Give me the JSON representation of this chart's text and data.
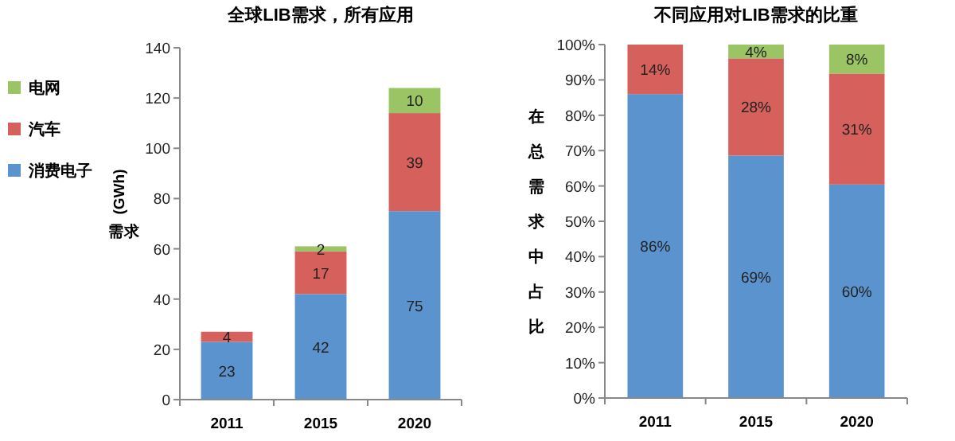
{
  "chart_data": [
    {
      "type": "bar",
      "stacked": true,
      "title": "全球LIB需求，所有应用",
      "ylabel": "(GWh)",
      "annotations": [
        "需求"
      ],
      "categories": [
        "2011",
        "2015",
        "2020"
      ],
      "ylim": [
        0,
        140
      ],
      "yticks": [
        0,
        20,
        40,
        60,
        80,
        100,
        120,
        140
      ],
      "legend": "left",
      "data_labels": true,
      "series": [
        {
          "name": "消费电子",
          "color": "#5b93cf",
          "values": [
            23,
            42,
            75
          ]
        },
        {
          "name": "汽车",
          "color": "#d5605c",
          "values": [
            4,
            17,
            39
          ]
        },
        {
          "name": "电网",
          "color": "#9bc464",
          "values": [
            null,
            2,
            10
          ]
        }
      ]
    },
    {
      "type": "bar",
      "stacked": true,
      "title": "不同应用对LIB需求的比重",
      "ylabel": "在总需求中占比",
      "categories": [
        "2011",
        "2015",
        "2020"
      ],
      "ylim": [
        0,
        100
      ],
      "yticks": [
        {
          "value": 0,
          "label": "0%"
        },
        {
          "value": 10,
          "label": "10%"
        },
        {
          "value": 20,
          "label": "20%"
        },
        {
          "value": 30,
          "label": "30%"
        },
        {
          "value": 40,
          "label": "40%"
        },
        {
          "value": 50,
          "label": "50%"
        },
        {
          "value": 60,
          "label": "60%"
        },
        {
          "value": 70,
          "label": "70%"
        },
        {
          "value": 80,
          "label": "80%"
        },
        {
          "value": 90,
          "label": "90%"
        },
        {
          "value": 100,
          "label": "100%"
        }
      ],
      "series": [
        {
          "color": "#5b93cf",
          "values": [
            86,
            68.6,
            60.4
          ],
          "value_labels": [
            "86%",
            "69%",
            "60%"
          ]
        },
        {
          "color": "#d5605c",
          "values": [
            14,
            27.5,
            31.4
          ],
          "value_labels": [
            "14%",
            "28%",
            "31%"
          ]
        },
        {
          "color": "#9bc464",
          "values": [
            null,
            3.9,
            8.2
          ],
          "value_labels": [
            null,
            "4%",
            "8%"
          ]
        }
      ]
    }
  ]
}
